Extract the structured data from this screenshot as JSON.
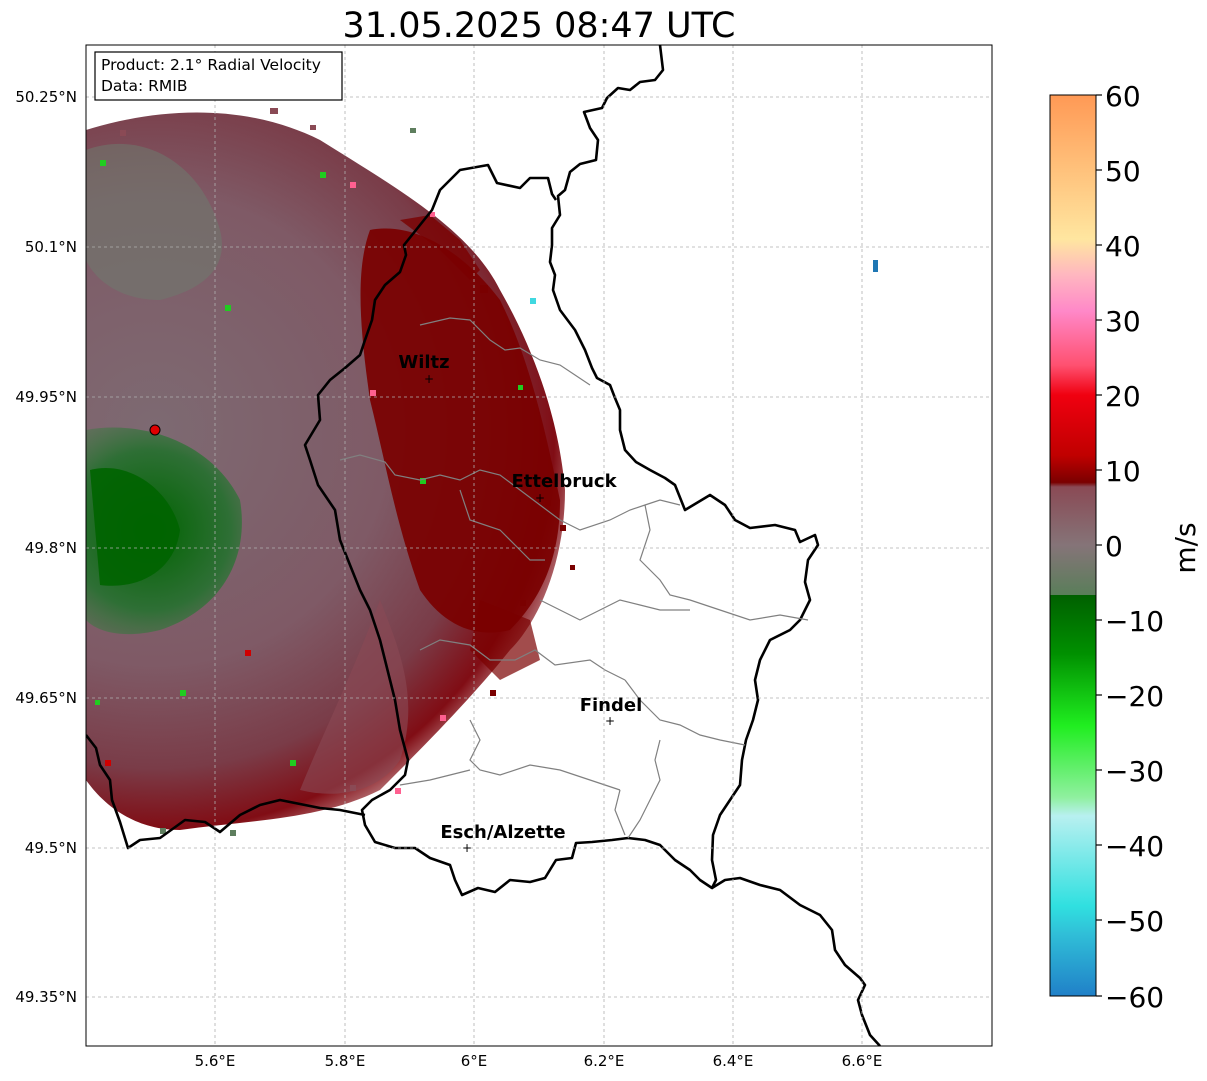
{
  "title": "31.05.2025 08:47 UTC",
  "info_box": {
    "product": "Product: 2.1° Radial Velocity",
    "data_source": "Data: RMIB"
  },
  "axes": {
    "lat_ticks": [
      "50.25°N",
      "50.1°N",
      "49.95°N",
      "49.8°N",
      "49.65°N",
      "49.5°N",
      "49.35°N"
    ],
    "lon_ticks": [
      "5.6°E",
      "5.8°E",
      "6°E",
      "6.2°E",
      "6.4°E",
      "6.6°E"
    ],
    "grid": true
  },
  "cities": [
    {
      "name": "Wiltz"
    },
    {
      "name": "Ettelbruck"
    },
    {
      "name": "Findel"
    },
    {
      "name": "Esch/Alzette"
    }
  ],
  "colorbar": {
    "unit": "m/s",
    "ticks": [
      "60",
      "50",
      "40",
      "30",
      "20",
      "10",
      "0",
      "−10",
      "−20",
      "−30",
      "−40",
      "−50",
      "−60"
    ],
    "range": [
      -60,
      60
    ]
  },
  "colors": {
    "strong_outbound": "#7a0000",
    "weak_outbound": "#8a5560",
    "near_zero": "#7e6e74",
    "weak_inbound": "#5e7e5e",
    "strong_inbound": "#006400",
    "radar_site": "#e00000"
  }
}
